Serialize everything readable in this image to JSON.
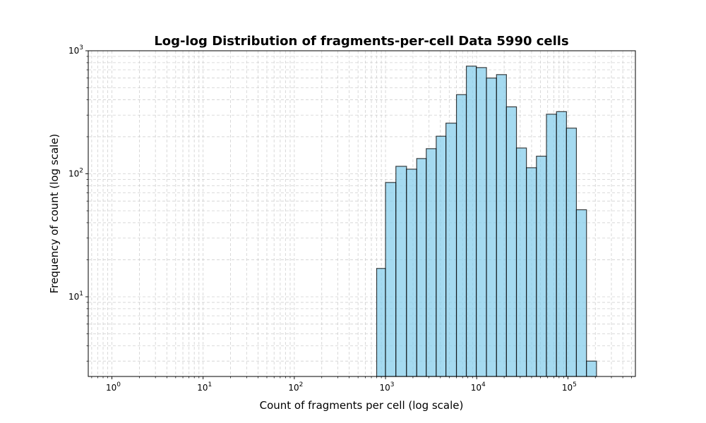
{
  "chart_data": {
    "type": "bar",
    "title": "Log-log Distribution of fragments-per-cell Data 5990 cells",
    "xlabel": "Count of fragments per cell (log scale)",
    "ylabel": "Frequency of count (log scale)",
    "xscale": "log",
    "yscale": "log",
    "xlim": [
      0.55,
      550000
    ],
    "ylim": [
      2.25,
      1000
    ],
    "grid": true,
    "grid_style": "dashed",
    "bar_color": "#87CEEB",
    "bar_edge_color": "#000000",
    "x_ticks": [
      {
        "value": 1,
        "base": "10",
        "exp": "0"
      },
      {
        "value": 10,
        "base": "10",
        "exp": "1"
      },
      {
        "value": 100,
        "base": "10",
        "exp": "2"
      },
      {
        "value": 1000,
        "base": "10",
        "exp": "3"
      },
      {
        "value": 10000,
        "base": "10",
        "exp": "4"
      },
      {
        "value": 100000,
        "base": "10",
        "exp": "5"
      }
    ],
    "y_ticks": [
      {
        "value": 10,
        "base": "10",
        "exp": "1"
      },
      {
        "value": 100,
        "base": "10",
        "exp": "2"
      },
      {
        "value": 1000,
        "base": "10",
        "exp": "3"
      }
    ],
    "bins": [
      {
        "left": 800,
        "right": 1000,
        "count": 17
      },
      {
        "left": 1000,
        "right": 1300,
        "count": 85
      },
      {
        "left": 1300,
        "right": 1700,
        "count": 115
      },
      {
        "left": 1700,
        "right": 2200,
        "count": 109
      },
      {
        "left": 2200,
        "right": 2800,
        "count": 133
      },
      {
        "left": 2800,
        "right": 3600,
        "count": 160
      },
      {
        "left": 3600,
        "right": 4600,
        "count": 202
      },
      {
        "left": 4600,
        "right": 6000,
        "count": 258
      },
      {
        "left": 6000,
        "right": 7700,
        "count": 440
      },
      {
        "left": 7700,
        "right": 9900,
        "count": 750
      },
      {
        "left": 9900,
        "right": 12800,
        "count": 730
      },
      {
        "left": 12800,
        "right": 16500,
        "count": 600
      },
      {
        "left": 16500,
        "right": 21200,
        "count": 640
      },
      {
        "left": 21200,
        "right": 27300,
        "count": 350
      },
      {
        "left": 27300,
        "right": 35100,
        "count": 162
      },
      {
        "left": 35100,
        "right": 45200,
        "count": 112
      },
      {
        "left": 45200,
        "right": 58200,
        "count": 139
      },
      {
        "left": 58200,
        "right": 75000,
        "count": 305
      },
      {
        "left": 75000,
        "right": 96500,
        "count": 320
      },
      {
        "left": 96500,
        "right": 124000,
        "count": 235
      },
      {
        "left": 124000,
        "right": 160000,
        "count": 51
      },
      {
        "left": 160000,
        "right": 206000,
        "count": 3
      }
    ]
  }
}
